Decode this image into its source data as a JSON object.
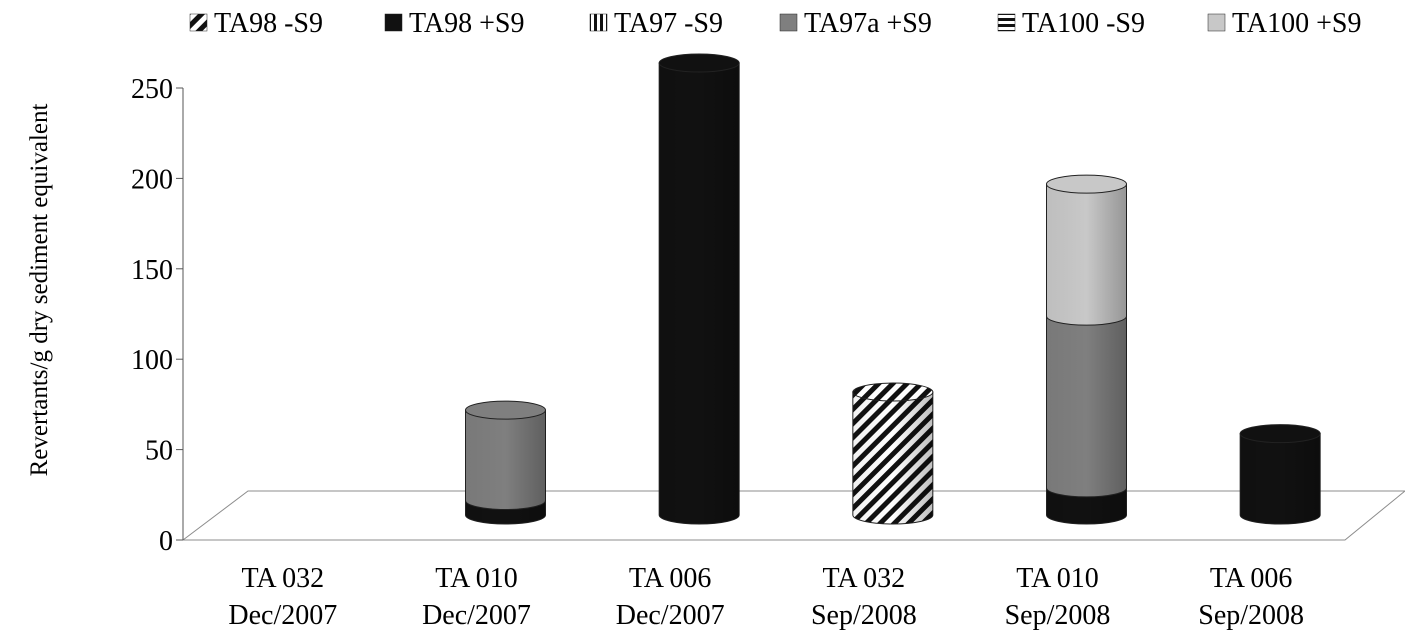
{
  "chart_data": {
    "type": "bar",
    "stacked": true,
    "style": "3d-cylinder",
    "title": "",
    "xlabel": "",
    "ylabel": "Revertants/g dry sediment equivalent",
    "ylim": [
      0,
      250
    ],
    "yticks": [
      0,
      50,
      100,
      150,
      200,
      250
    ],
    "legend_position": "top",
    "categories": [
      {
        "line1": "TA 032",
        "line2": "Dec/2007"
      },
      {
        "line1": "TA 010",
        "line2": "Dec/2007"
      },
      {
        "line1": "TA 006",
        "line2": "Dec/2007"
      },
      {
        "line1": "TA 032",
        "line2": "Sep/2008"
      },
      {
        "line1": "TA 010",
        "line2": "Sep/2008"
      },
      {
        "line1": "TA 006",
        "line2": "Sep/2008"
      }
    ],
    "series": [
      {
        "name": "TA98 -S9",
        "pattern": "diagonal",
        "color": "#111111",
        "values": [
          0,
          0,
          0,
          68,
          0,
          0
        ]
      },
      {
        "name": "TA98 +S9",
        "pattern": "solid",
        "color": "#111111",
        "values": [
          0,
          8,
          250,
          0,
          15,
          45
        ]
      },
      {
        "name": "TA97 -S9",
        "pattern": "vertical",
        "color": "#111111",
        "values": [
          0,
          0,
          0,
          0,
          0,
          0
        ]
      },
      {
        "name": "TA97a +S9",
        "pattern": "solid",
        "color": "#7f7f7f",
        "values": [
          0,
          50,
          0,
          0,
          95,
          0
        ]
      },
      {
        "name": "TA100 -S9",
        "pattern": "horizontal",
        "color": "#111111",
        "values": [
          0,
          0,
          0,
          0,
          0,
          0
        ]
      },
      {
        "name": "TA100 +S9",
        "pattern": "solid",
        "color": "#c8c8c8",
        "values": [
          0,
          0,
          0,
          0,
          73,
          0
        ]
      }
    ]
  }
}
